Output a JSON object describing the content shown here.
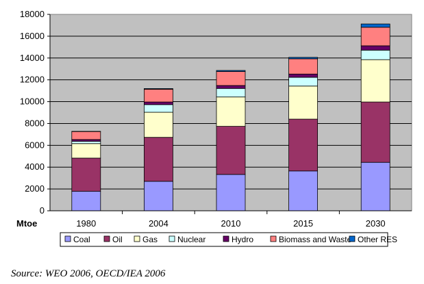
{
  "chart_data": {
    "type": "bar",
    "stacked": true,
    "categories": [
      "1980",
      "2004",
      "2010",
      "2015",
      "2030"
    ],
    "series": [
      {
        "name": "Coal",
        "color": "#9999ff",
        "values": [
          1780,
          2700,
          3330,
          3650,
          4440
        ]
      },
      {
        "name": "Oil",
        "color": "#993366",
        "values": [
          3050,
          4030,
          4410,
          4750,
          5530
        ]
      },
      {
        "name": "Gas",
        "color": "#ffffcc",
        "values": [
          1330,
          2300,
          2690,
          3030,
          3880
        ]
      },
      {
        "name": "Nuclear",
        "color": "#ccffff",
        "values": [
          200,
          700,
          780,
          800,
          870
        ]
      },
      {
        "name": "Hydro",
        "color": "#660066",
        "values": [
          170,
          240,
          270,
          300,
          400
        ]
      },
      {
        "name": "Biomass and Waste",
        "color": "#ff8080",
        "values": [
          730,
          1170,
          1280,
          1400,
          1700
        ]
      },
      {
        "name": "Other RES",
        "color": "#0066cc",
        "values": [
          20,
          60,
          100,
          130,
          300
        ]
      }
    ],
    "ylim": [
      0,
      18000
    ],
    "yticks": [
      "0",
      "2000",
      "4000",
      "6000",
      "8000",
      "10000",
      "12000",
      "14000",
      "16000",
      "18000"
    ],
    "ylabel": "Mtoe",
    "xlabel": "",
    "title": "",
    "grid": true,
    "plot_background": "#c0c0c0",
    "legend_position": "bottom"
  },
  "source_note": "Source: WEO 2006, OECD/IEA 2006"
}
